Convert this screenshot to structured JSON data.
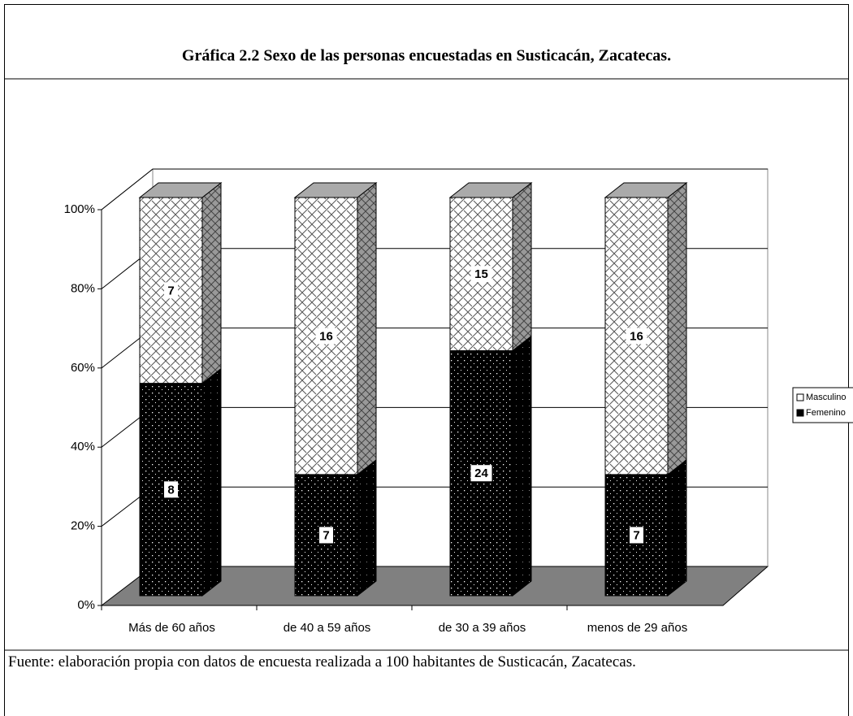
{
  "chart_data": {
    "type": "bar",
    "stacking": "percent",
    "title": "Gráfica 2.2  Sexo de las personas encuestadas en  Susticacán, Zacatecas.",
    "categories": [
      "Más de 60 años",
      "de 40 a 59 años",
      "de 30 a 39 años",
      "menos de 29 años"
    ],
    "series": [
      {
        "name": "Femenino",
        "color": "#000000",
        "values": [
          8,
          7,
          24,
          7
        ]
      },
      {
        "name": "Masculino",
        "color": "#ffffff",
        "values": [
          7,
          16,
          15,
          16
        ]
      }
    ],
    "ylim": [
      0,
      100
    ],
    "yticks": [
      {
        "value": 0,
        "label": "0%"
      },
      {
        "value": 20,
        "label": "20%"
      },
      {
        "value": 40,
        "label": "40%"
      },
      {
        "value": 60,
        "label": "60%"
      },
      {
        "value": 80,
        "label": "80%"
      },
      {
        "value": 100,
        "label": "100%"
      }
    ],
    "grid": true,
    "legend": "right",
    "source": "Fuente: elaboración propia con datos de encuesta realizada a 100 habitantes de Susticacán, Zacatecas."
  }
}
